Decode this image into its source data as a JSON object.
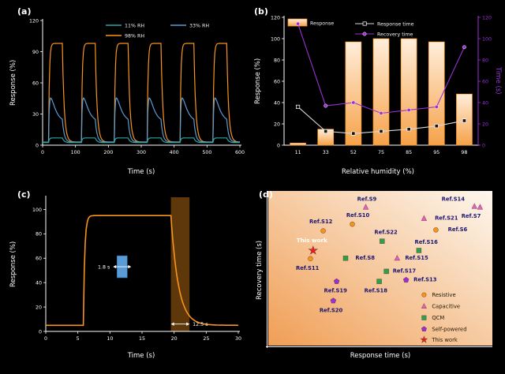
{
  "figure": {
    "background": "#000000",
    "panel_tags": {
      "a": "(a)",
      "b": "(b)",
      "c": "(c)",
      "d": "(d)"
    }
  },
  "colors": {
    "orange": "#f7941d",
    "bar_fill_top": "#ffeedb",
    "bar_fill_bottom": "#f6a24a",
    "blue": "#5b9bd5",
    "teal": "#2aa7a0",
    "purple": "#9b30d9",
    "gray": "#d8d8d8",
    "red": "#ee1c25",
    "pink": "#e75fc3",
    "green": "#2e9e4f",
    "navy": "#1c1670",
    "panel_d_bg_light": "#fdf7ee",
    "panel_d_bg_dark": "#f09e55"
  },
  "chart_data": [
    {
      "panel": "a",
      "type": "line",
      "xlabel": "Time (s)",
      "ylabel": "Response (%)",
      "xlim": [
        0,
        600
      ],
      "ylim": [
        0,
        120
      ],
      "xticks": [
        0,
        100,
        200,
        300,
        400,
        500,
        600
      ],
      "yticks": [
        0,
        30,
        60,
        90,
        120
      ],
      "cycles": 6,
      "series": [
        {
          "name": "98% RH",
          "color_key": "orange",
          "high": 98,
          "low": 3
        },
        {
          "name": "33% RH",
          "color_key": "blue",
          "high": 56,
          "low": 3,
          "sag_to": 22,
          "sag_tau": 14
        },
        {
          "name": "11% RH",
          "color_key": "teal",
          "high": 7,
          "low": 2.5
        }
      ]
    },
    {
      "panel": "b",
      "type": "bar+line",
      "xlabel": "Relative humidity (%)",
      "ylabel_left": "Response (%)",
      "ylabel_right": "Time (s)",
      "categories": [
        "11",
        "33",
        "52",
        "75",
        "85",
        "95",
        "98"
      ],
      "ylim": [
        0,
        120
      ],
      "yticks": [
        0,
        20,
        40,
        60,
        80,
        100,
        120
      ],
      "yticks_right": [
        0,
        20,
        40,
        60,
        80,
        100,
        120
      ],
      "bars": {
        "name": "Response",
        "values": [
          2,
          15,
          97,
          100,
          100,
          97,
          48
        ]
      },
      "lines": [
        {
          "name": "Response time",
          "color_key": "gray",
          "values": [
            36,
            13,
            11,
            13,
            15,
            18,
            23
          ]
        },
        {
          "name": "Recovery time",
          "color_key": "purple",
          "values": [
            114,
            37,
            40,
            30,
            33,
            36,
            92
          ]
        }
      ]
    },
    {
      "panel": "c",
      "type": "line",
      "xlabel": "Time (s)",
      "ylabel": "Response (%)",
      "xlim": [
        0,
        30
      ],
      "ylim": [
        0,
        110
      ],
      "xticks": [
        0,
        5,
        10,
        15,
        20,
        25,
        30
      ],
      "yticks": [
        0,
        20,
        40,
        60,
        80,
        100
      ],
      "curve": {
        "baseline": 5,
        "high": 95,
        "t_rise": 6,
        "t_fall": 19.5,
        "color_key": "orange"
      },
      "response_marker": {
        "t0": 11.1,
        "t1": 12.7,
        "v0": 44,
        "v1": 62,
        "label": "1.8 s"
      },
      "recovery_band": {
        "t0": 19.5,
        "t1": 22.4,
        "label": "12.5 s"
      }
    },
    {
      "panel": "d",
      "type": "scatter",
      "xlabel": "Response time (s)",
      "ylabel": "Recovery time (s)",
      "marker_styles": {
        "resistive": {
          "shape": "circle",
          "color": "#f7941d"
        },
        "capacitive": {
          "shape": "triangle",
          "color": "#e75fc3"
        },
        "qcm": {
          "shape": "square",
          "color": "#2e9e4f"
        },
        "self-powered": {
          "shape": "pentagon",
          "color": "#9b30d9"
        },
        "this-work": {
          "shape": "star",
          "color": "#ee1c25"
        }
      },
      "points": [
        {
          "label": "Ref.S9",
          "type": "capacitive",
          "x": 0.435,
          "y": 0.105,
          "label_x": 0.44,
          "label_y": 0.052
        },
        {
          "label": "Ref.S14",
          "type": "capacitive",
          "x": 0.92,
          "y": 0.1,
          "label_x": 0.825,
          "label_y": 0.052
        },
        {
          "label": "Ref.S10",
          "type": "resistive",
          "x": 0.375,
          "y": 0.215,
          "label_x": 0.4,
          "label_y": 0.158
        },
        {
          "label": "Ref.S12",
          "type": "resistive",
          "x": 0.245,
          "y": 0.258,
          "label_x": 0.235,
          "label_y": 0.198
        },
        {
          "label": "Ref.S21",
          "type": "capacitive",
          "x": 0.695,
          "y": 0.178,
          "label_x": 0.795,
          "label_y": 0.175
        },
        {
          "label": "Ref.S7",
          "type": "capacitive",
          "x": 0.945,
          "y": 0.105,
          "label_x": 0.905,
          "label_y": 0.162
        },
        {
          "label": "Ref.S22",
          "type": "qcm",
          "x": 0.508,
          "y": 0.325,
          "label_x": 0.525,
          "label_y": 0.268
        },
        {
          "label": "Ref.S6",
          "type": "resistive",
          "x": 0.748,
          "y": 0.252,
          "label_x": 0.845,
          "label_y": 0.248
        },
        {
          "label": "Ref.S16",
          "type": "qcm",
          "x": 0.672,
          "y": 0.385,
          "label_x": 0.705,
          "label_y": 0.33
        },
        {
          "label": "This work",
          "type": "this-work",
          "x": 0.2,
          "y": 0.385,
          "label_x": 0.195,
          "label_y": 0.32
        },
        {
          "label": "Ref.S8",
          "type": "qcm",
          "x": 0.345,
          "y": 0.435,
          "label_x": 0.432,
          "label_y": 0.432
        },
        {
          "label": "Ref.S15",
          "type": "capacitive",
          "x": 0.575,
          "y": 0.435,
          "label_x": 0.662,
          "label_y": 0.432
        },
        {
          "label": "Ref.S11",
          "type": "resistive",
          "x": 0.188,
          "y": 0.438,
          "label_x": 0.175,
          "label_y": 0.5
        },
        {
          "label": "Ref.S17",
          "type": "qcm",
          "x": 0.527,
          "y": 0.52,
          "label_x": 0.607,
          "label_y": 0.518
        },
        {
          "label": "Ref.S13",
          "type": "self-powered",
          "x": 0.615,
          "y": 0.576,
          "label_x": 0.7,
          "label_y": 0.574
        },
        {
          "label": "Ref.S19",
          "type": "self-powered",
          "x": 0.305,
          "y": 0.585,
          "label_x": 0.3,
          "label_y": 0.645
        },
        {
          "label": "Ref.S18",
          "type": "qcm",
          "x": 0.495,
          "y": 0.585,
          "label_x": 0.48,
          "label_y": 0.645
        },
        {
          "label": "Ref.S20",
          "type": "self-powered",
          "x": 0.29,
          "y": 0.71,
          "label_x": 0.28,
          "label_y": 0.772
        }
      ],
      "legend": [
        {
          "label": "Resistive",
          "type": "resistive"
        },
        {
          "label": "Capacitive",
          "type": "capacitive"
        },
        {
          "label": "QCM",
          "type": "qcm"
        },
        {
          "label": "Self-powered",
          "type": "self-powered"
        },
        {
          "label": "This work",
          "type": "this-work"
        }
      ],
      "legend_rows": [
        0.672,
        0.746,
        0.82,
        0.893,
        0.962
      ]
    }
  ]
}
